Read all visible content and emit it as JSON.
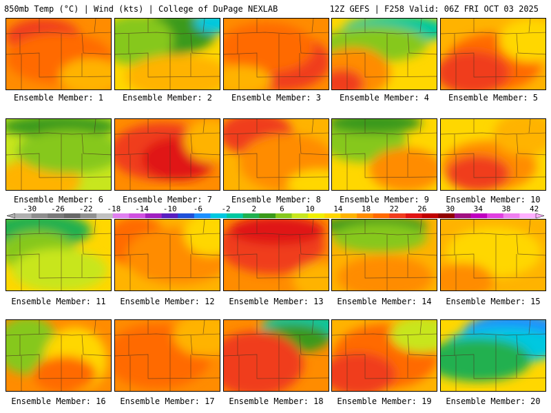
{
  "header": {
    "left": "850mb Temp (°C) | Wind (kts) | College of DuPage NEXLAB",
    "right": "12Z GEFS | F258 Valid: 06Z FRI OCT 03 2025"
  },
  "colorbar": {
    "tick_labels": [
      "-30",
      "-26",
      "-22",
      "-18",
      "-14",
      "-10",
      "-6",
      "-2",
      "2",
      "6",
      "10",
      "14",
      "18",
      "22",
      "26",
      "30",
      "34",
      "38",
      "42"
    ],
    "colors": [
      "#b0b0b0",
      "#8e8e8e",
      "#7a7a7a",
      "#686868",
      "#909090",
      "#c0c0c0",
      "#e080f0",
      "#d050e0",
      "#a020c0",
      "#5a1fc0",
      "#2050d8",
      "#1e90ff",
      "#00c8e0",
      "#00c8a0",
      "#20b050",
      "#3a9a1a",
      "#86c81e",
      "#c8e61e",
      "#f0f000",
      "#ffd700",
      "#ffb300",
      "#ff8c00",
      "#ff6a00",
      "#f03c1e",
      "#e01414",
      "#c00000",
      "#900000",
      "#a01080",
      "#c000c0",
      "#e040e0",
      "#f080f0",
      "#ffb0ff"
    ]
  },
  "members": [
    {
      "label": "Ensemble Member: 1",
      "base": "#ff8c00",
      "blobs": [
        {
          "c": "#f03c1e"
        },
        {
          "c": "#ff6a00"
        },
        {
          "c": "#ffb300"
        }
      ]
    },
    {
      "label": "Ensemble Member: 2",
      "base": "#ffd700",
      "blobs": [
        {
          "c": "#3a9a1a"
        },
        {
          "c": "#00c8e0"
        },
        {
          "c": "#86c81e"
        },
        {
          "c": "#ffb300"
        }
      ]
    },
    {
      "label": "Ensemble Member: 3",
      "base": "#ff8c00",
      "blobs": [
        {
          "c": "#f03c1e"
        },
        {
          "c": "#ff6a00"
        },
        {
          "c": "#ffb300"
        }
      ]
    },
    {
      "label": "Ensemble Member: 4",
      "base": "#ffd700",
      "blobs": [
        {
          "c": "#00c8a0"
        },
        {
          "c": "#86c81e"
        },
        {
          "c": "#ff8c00"
        },
        {
          "c": "#f03c1e"
        }
      ]
    },
    {
      "label": "Ensemble Member: 5",
      "base": "#ffb300",
      "blobs": [
        {
          "c": "#ff6a00"
        },
        {
          "c": "#f03c1e"
        },
        {
          "c": "#ffd700"
        }
      ]
    },
    {
      "label": "Ensemble Member: 6",
      "base": "#c8e61e",
      "blobs": [
        {
          "c": "#3a9a1a"
        },
        {
          "c": "#ffb300"
        },
        {
          "c": "#86c81e"
        }
      ]
    },
    {
      "label": "Ensemble Member: 7",
      "base": "#ff8c00",
      "blobs": [
        {
          "c": "#f03c1e"
        },
        {
          "c": "#e01414"
        },
        {
          "c": "#ffb300"
        }
      ]
    },
    {
      "label": "Ensemble Member: 8",
      "base": "#ffb300",
      "blobs": [
        {
          "c": "#f03c1e"
        },
        {
          "c": "#ff8c00"
        },
        {
          "c": "#ffd700"
        }
      ]
    },
    {
      "label": "Ensemble Member: 9",
      "base": "#ffd700",
      "blobs": [
        {
          "c": "#86c81e"
        },
        {
          "c": "#3a9a1a"
        },
        {
          "c": "#ff8c00"
        }
      ]
    },
    {
      "label": "Ensemble Member: 10",
      "base": "#ffd700",
      "blobs": [
        {
          "c": "#ff8c00"
        },
        {
          "c": "#f03c1e"
        },
        {
          "c": "#ffb300"
        }
      ]
    },
    {
      "label": "Ensemble Member: 11",
      "base": "#ffd700",
      "blobs": [
        {
          "c": "#20b050"
        },
        {
          "c": "#86c81e"
        },
        {
          "c": "#c8e61e"
        }
      ]
    },
    {
      "label": "Ensemble Member: 12",
      "base": "#ffb300",
      "blobs": [
        {
          "c": "#ff6a00"
        },
        {
          "c": "#ff8c00"
        },
        {
          "c": "#ffd700"
        }
      ]
    },
    {
      "label": "Ensemble Member: 13",
      "base": "#ff8c00",
      "blobs": [
        {
          "c": "#f03c1e"
        },
        {
          "c": "#e01414"
        },
        {
          "c": "#ffb300"
        }
      ]
    },
    {
      "label": "Ensemble Member: 14",
      "base": "#ffb300",
      "blobs": [
        {
          "c": "#3a9a1a"
        },
        {
          "c": "#86c81e"
        },
        {
          "c": "#ff8c00"
        }
      ]
    },
    {
      "label": "Ensemble Member: 15",
      "base": "#ffb300",
      "blobs": [
        {
          "c": "#ffd700"
        },
        {
          "c": "#ff8c00"
        }
      ]
    },
    {
      "label": "Ensemble Member: 16",
      "base": "#ff8c00",
      "blobs": [
        {
          "c": "#86c81e"
        },
        {
          "c": "#ffd700"
        },
        {
          "c": "#ff6a00"
        }
      ]
    },
    {
      "label": "Ensemble Member: 17",
      "base": "#ff8c00",
      "blobs": [
        {
          "c": "#ff6a00"
        },
        {
          "c": "#ffb300"
        }
      ]
    },
    {
      "label": "Ensemble Member: 18",
      "base": "#ff8c00",
      "blobs": [
        {
          "c": "#00c8a0"
        },
        {
          "c": "#3a9a1a"
        },
        {
          "c": "#f03c1e"
        }
      ]
    },
    {
      "label": "Ensemble Member: 19",
      "base": "#ffb300",
      "blobs": [
        {
          "c": "#ff6a00"
        },
        {
          "c": "#c8e61e"
        },
        {
          "c": "#f03c1e"
        }
      ]
    },
    {
      "label": "Ensemble Member: 20",
      "base": "#ffd700",
      "blobs": [
        {
          "c": "#1e90ff"
        },
        {
          "c": "#00c8e0"
        },
        {
          "c": "#20b050"
        }
      ]
    }
  ]
}
